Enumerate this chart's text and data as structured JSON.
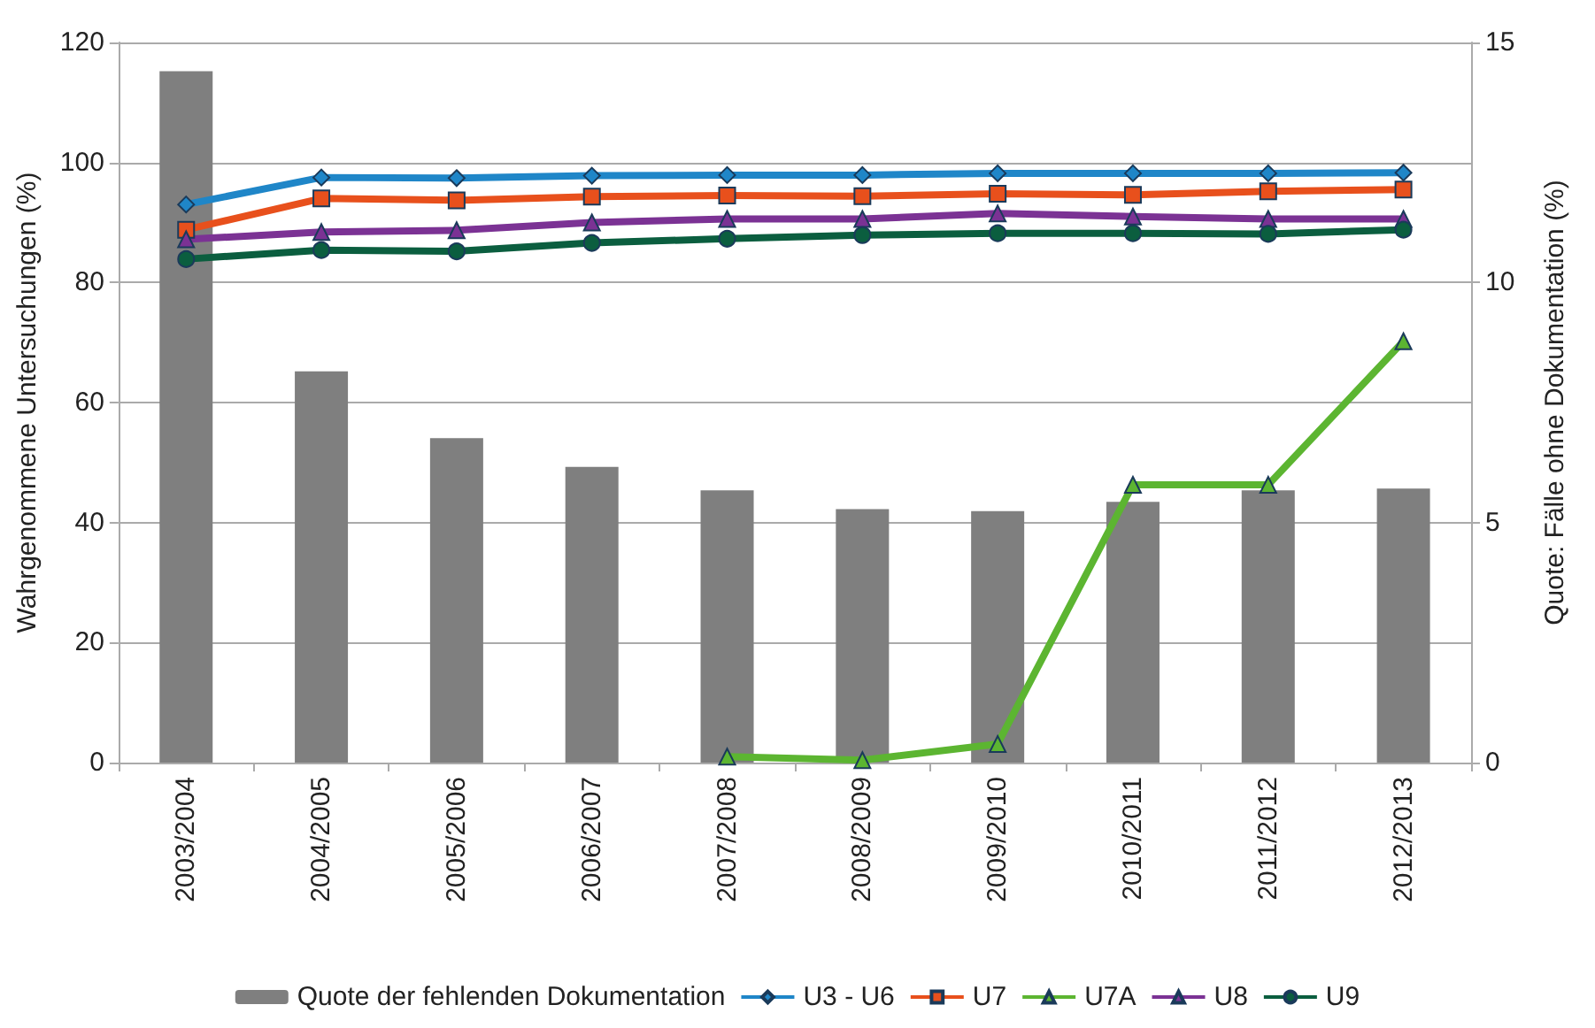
{
  "chart_data": {
    "type": "line",
    "categories": [
      "2003/2004",
      "2004/2005",
      "2005/2006",
      "2006/2007",
      "2007/2008",
      "2008/2009",
      "2009/2010",
      "2010/2011",
      "2011/2012",
      "2012/2013"
    ],
    "ylabel": "Wahrgenommene Untersuchungen (%)",
    "y2label": "Quote: Fälle ohne Dokumentation (%)",
    "ylim": [
      0,
      120
    ],
    "yticks": [
      0,
      20,
      40,
      60,
      80,
      100,
      120
    ],
    "y2lim": [
      0,
      15
    ],
    "y2ticks": [
      0,
      5,
      10,
      15
    ],
    "grid": "y",
    "legend": "bottom",
    "series": [
      {
        "name": "Quote der fehlenden Dokumentation",
        "type": "bar",
        "axis": "y2",
        "color": "#7f7f7f",
        "values": [
          14.4,
          8.15,
          6.76,
          6.16,
          5.67,
          5.28,
          5.24,
          5.43,
          5.67,
          5.71
        ]
      },
      {
        "name": "U3 - U6",
        "color": "#1f86c8",
        "marker": "diamond",
        "values": [
          93.0,
          97.5,
          97.4,
          97.8,
          97.9,
          97.9,
          98.2,
          98.2,
          98.2,
          98.3
        ]
      },
      {
        "name": "U7",
        "color": "#e8501c",
        "marker": "square",
        "values": [
          88.8,
          94.0,
          93.7,
          94.3,
          94.5,
          94.4,
          94.8,
          94.6,
          95.2,
          95.5
        ]
      },
      {
        "name": "U7A",
        "color": "#5cb531",
        "marker": "triangle",
        "values": [
          null,
          null,
          null,
          null,
          1.0,
          0.4,
          3.1,
          46.3,
          46.3,
          70.2
        ]
      },
      {
        "name": "U8",
        "color": "#7b3294",
        "marker": "triangle",
        "values": [
          87.2,
          88.4,
          88.7,
          90.0,
          90.6,
          90.6,
          91.5,
          91.0,
          90.6,
          90.6
        ]
      },
      {
        "name": "U9",
        "color": "#0b5e3f",
        "marker": "circle",
        "values": [
          83.9,
          85.4,
          85.2,
          86.6,
          87.3,
          87.9,
          88.2,
          88.2,
          88.1,
          88.8
        ]
      }
    ]
  }
}
